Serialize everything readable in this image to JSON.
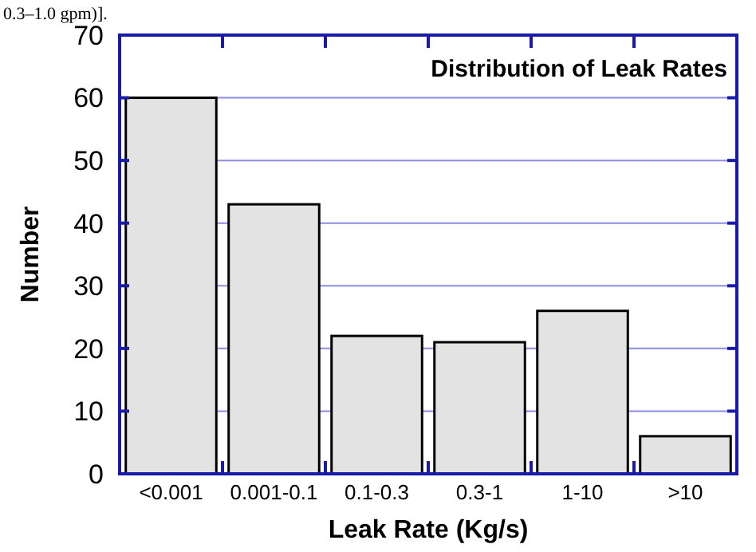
{
  "chart_data": {
    "type": "bar",
    "title": "Distribution of Leak Rates",
    "xlabel": "Leak Rate (Kg/s)",
    "ylabel": "Number",
    "annotations": [
      "0.3–1.0 gpm)]."
    ],
    "categories": [
      "<0.001",
      "0.001-0.1",
      "0.1-0.3",
      "0.3-1",
      "1-10",
      ">10"
    ],
    "values": [
      60,
      43,
      22,
      21,
      26,
      6
    ],
    "color": "#e3e3e3",
    "ylim": [
      0,
      70
    ],
    "yticks": [
      0,
      10,
      20,
      30,
      40,
      50,
      60,
      70
    ],
    "grid": "y"
  }
}
